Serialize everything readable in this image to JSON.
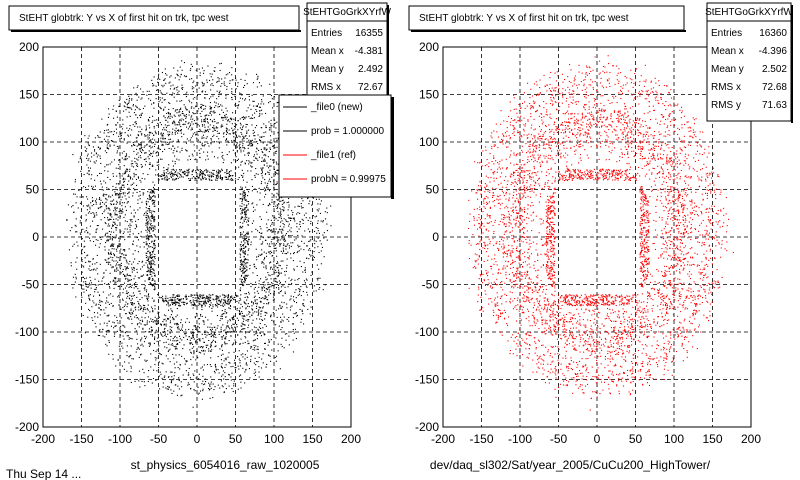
{
  "colors": {
    "background": "#ffffff",
    "frame": "#000000",
    "grid": "#000000",
    "ref": "#ff0000",
    "new": "#000000"
  },
  "footer_fragment": "Thu Sep 14 ...",
  "chart_data": [
    {
      "type": "scatter",
      "title": "StEHT globtrk: Y vs X of first hit on trk, tpc west",
      "caption": "st_physics_6054016_raw_1020005",
      "color": "#000000",
      "xlim": [
        -200,
        200
      ],
      "ylim": [
        -200,
        200
      ],
      "xticks": [
        -200,
        -150,
        -100,
        -50,
        0,
        50,
        100,
        150,
        200
      ],
      "yticks": [
        -200,
        -150,
        -100,
        -50,
        0,
        50,
        100,
        150,
        200
      ],
      "grid": true,
      "stats": {
        "name": "StEHTGoGrkXYrfW",
        "rows": [
          {
            "label": "Entries",
            "value": "16355"
          },
          {
            "label": "Mean x",
            "value": "-4.381"
          },
          {
            "label": "Mean y",
            "value": "2.492"
          },
          {
            "label": "RMS x",
            "value": "72.67"
          }
        ]
      },
      "legend": {
        "placement": "top-right",
        "entries": [
          {
            "label": "_file0 (new)",
            "color": "#000000"
          },
          {
            "label": "prob = 1.000000",
            "color": "#000000"
          },
          {
            "label": "_file1 (ref)",
            "color": "#ff0000"
          },
          {
            "label": "probN = 0.99975",
            "color": "#ff0000"
          }
        ]
      },
      "distribution": {
        "inner_hole_x": [
          -55,
          55
        ],
        "inner_hole_y": [
          -60,
          60
        ],
        "dense_band_width": 12,
        "outer_radius": 170,
        "point_count": 16355
      }
    },
    {
      "type": "scatter",
      "title": "StEHT globtrk: Y vs X of first hit on trk, tpc west",
      "caption": "dev/daq_sl302/Sat/year_2005/CuCu200_HighTower/",
      "color": "#ff0000",
      "xlim": [
        -200,
        200
      ],
      "ylim": [
        -200,
        200
      ],
      "xticks": [
        -200,
        -150,
        -100,
        -50,
        0,
        50,
        100,
        150,
        200
      ],
      "yticks": [
        -200,
        -150,
        -100,
        -50,
        0,
        50,
        100,
        150,
        200
      ],
      "grid": true,
      "stats": {
        "name": "StEHTGoGrkXYrfW",
        "rows": [
          {
            "label": "Entries",
            "value": "16360"
          },
          {
            "label": "Mean x",
            "value": "-4.396"
          },
          {
            "label": "Mean y",
            "value": "2.502"
          },
          {
            "label": "RMS x",
            "value": "72.68"
          },
          {
            "label": "RMS y",
            "value": "71.63"
          }
        ]
      },
      "distribution": {
        "inner_hole_x": [
          -55,
          55
        ],
        "inner_hole_y": [
          -60,
          60
        ],
        "dense_band_width": 12,
        "outer_radius": 170,
        "point_count": 16360
      }
    }
  ]
}
